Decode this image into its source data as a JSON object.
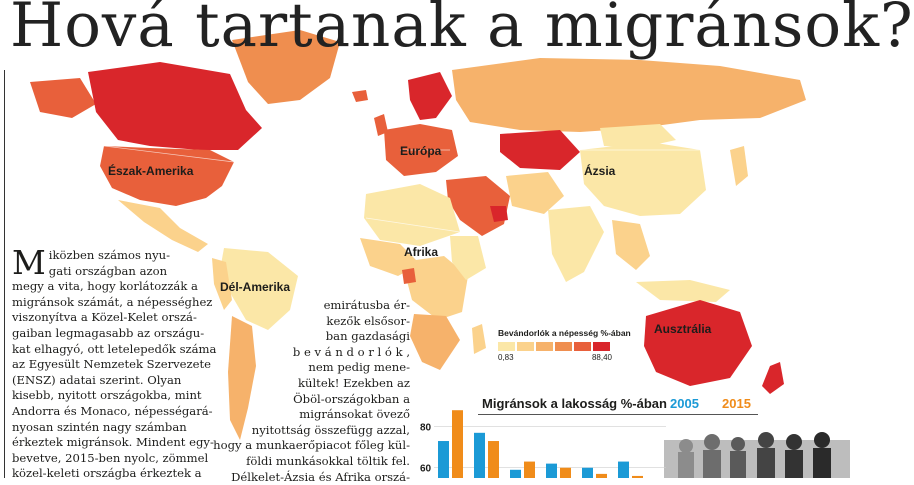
{
  "headline": "Hová tartanak a migránsok?",
  "regions": {
    "north_america": "Észak-Amerika",
    "europe": "Európa",
    "asia": "Ázsia",
    "africa": "Afrika",
    "south_america": "Dél-Amerika",
    "australia": "Ausztrália"
  },
  "legend": {
    "title": "Bevándorlók a népesség %-ában",
    "min": "0,83",
    "max": "88,40",
    "colors": [
      "#fbe7a7",
      "#fbd28c",
      "#f6b26b",
      "#ef8e4f",
      "#e8603b",
      "#d9262b"
    ]
  },
  "article": {
    "dropcap": "M",
    "col1_first_lines": [
      "iközben számos nyu-",
      "gati országban azon"
    ],
    "col1_lines": [
      "megy a vita, hogy korlátozzák a",
      "migránsok számát, a népességhez",
      "viszonyítva a Közel-Kelet orszá-",
      "gaiban legmagasabb az országu-",
      "kat elhagyó, ott letelepedők száma",
      "az Egyesült Nemzetek Szervezete",
      "(ENSZ) adatai szerint. Olyan",
      "kisebb, nyitott országokba, mint",
      "Andorra és Monaco, népességará-",
      "nyosan szintén nagy számban",
      "érkeztek migránsok. Mindent egy-",
      "bevetve, 2015-ben nyolc, zömmel",
      "közel-keleti országba érkeztek a"
    ],
    "col2_lines": [
      "emirátusba ér-",
      "kezők elsősor-",
      "ban gazdasági",
      "b e v á n d o r l ó k ,",
      "nem pedig mene-",
      "kültek! Ezekben az",
      "Öböl-országokban a",
      "migránsokat övező",
      "nyitottság összefügg azzal,",
      "hogy a munkaerőpiacot főleg kül-",
      "földi munkásokkal töltik fel.",
      "Délkelet-Ázsia és Afrika orszá-"
    ]
  },
  "chart_data": {
    "type": "bar",
    "title": "Migránsok a lakosság %-ában",
    "series": [
      {
        "name": "2005",
        "color": "#1b9ad6",
        "values": [
          73,
          77,
          59,
          62,
          60,
          63
        ]
      },
      {
        "name": "2015",
        "color": "#f08c1a",
        "values": [
          88,
          73,
          63,
          60,
          57,
          56
        ]
      }
    ],
    "yticks": [
      "80",
      "60"
    ],
    "ylim": [
      55,
      92
    ]
  }
}
